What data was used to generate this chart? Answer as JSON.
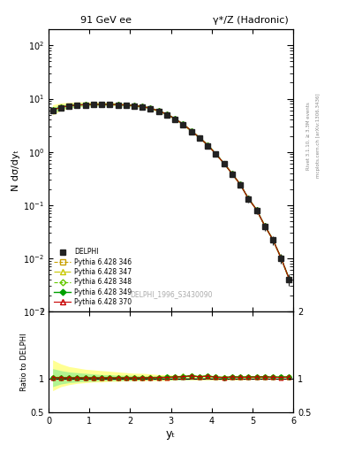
{
  "title_left": "91 GeV ee",
  "title_right": "γ*/Z (Hadronic)",
  "ylabel_main": "N dσ/dyₜ",
  "ylabel_ratio": "Ratio to DELPHI",
  "xlabel": "yₜ",
  "watermark": "DELPHI_1996_S3430090",
  "right_label_top": "Rivet 3.1.10, ≥ 3.3M events",
  "right_label_bot": "mcplots.cern.ch [arXiv:1306.3436]",
  "xlim": [
    0,
    6
  ],
  "ylim_main": [
    0.001,
    200
  ],
  "ylim_ratio": [
    0.5,
    2.5
  ],
  "x_data": [
    0.1,
    0.3,
    0.5,
    0.7,
    0.9,
    1.1,
    1.3,
    1.5,
    1.7,
    1.9,
    2.1,
    2.3,
    2.5,
    2.7,
    2.9,
    3.1,
    3.3,
    3.5,
    3.7,
    3.9,
    4.1,
    4.3,
    4.5,
    4.7,
    4.9,
    5.1,
    5.3,
    5.5,
    5.7,
    5.9
  ],
  "y_delphi": [
    6.0,
    6.8,
    7.2,
    7.5,
    7.6,
    7.7,
    7.7,
    7.7,
    7.6,
    7.5,
    7.3,
    7.0,
    6.5,
    5.8,
    5.0,
    4.1,
    3.2,
    2.4,
    1.8,
    1.3,
    0.9,
    0.6,
    0.38,
    0.24,
    0.13,
    0.08,
    0.04,
    0.022,
    0.01,
    0.004
  ],
  "yerr_delphi_lo": [
    0.3,
    0.2,
    0.15,
    0.12,
    0.11,
    0.1,
    0.1,
    0.1,
    0.1,
    0.1,
    0.12,
    0.12,
    0.14,
    0.14,
    0.15,
    0.15,
    0.14,
    0.13,
    0.12,
    0.1,
    0.08,
    0.06,
    0.04,
    0.03,
    0.02,
    0.012,
    0.007,
    0.004,
    0.002,
    0.001
  ],
  "yerr_delphi_hi": [
    0.3,
    0.2,
    0.15,
    0.12,
    0.11,
    0.1,
    0.1,
    0.1,
    0.1,
    0.1,
    0.12,
    0.12,
    0.14,
    0.14,
    0.15,
    0.15,
    0.14,
    0.13,
    0.12,
    0.1,
    0.08,
    0.06,
    0.04,
    0.03,
    0.02,
    0.012,
    0.007,
    0.004,
    0.002,
    0.001
  ],
  "y_mc": [
    6.1,
    6.9,
    7.3,
    7.6,
    7.7,
    7.8,
    7.8,
    7.8,
    7.7,
    7.6,
    7.4,
    7.1,
    6.6,
    5.9,
    5.1,
    4.2,
    3.3,
    2.5,
    1.85,
    1.35,
    0.92,
    0.61,
    0.39,
    0.245,
    0.133,
    0.082,
    0.041,
    0.0225,
    0.0102,
    0.0041
  ],
  "band_lo": [
    0.82,
    0.88,
    0.91,
    0.93,
    0.94,
    0.95,
    0.95,
    0.96,
    0.96,
    0.97,
    0.97,
    0.97,
    0.97,
    0.97,
    0.97,
    0.98,
    0.98,
    0.98,
    0.98,
    0.98,
    0.98,
    0.98,
    0.98,
    0.98,
    0.99,
    0.99,
    0.99,
    0.99,
    0.99,
    0.99
  ],
  "band_hi": [
    1.28,
    1.22,
    1.18,
    1.16,
    1.14,
    1.13,
    1.12,
    1.11,
    1.1,
    1.09,
    1.08,
    1.08,
    1.07,
    1.06,
    1.06,
    1.05,
    1.05,
    1.04,
    1.04,
    1.03,
    1.03,
    1.03,
    1.03,
    1.02,
    1.02,
    1.02,
    1.02,
    1.01,
    1.01,
    1.01
  ],
  "band_green_lo": [
    0.88,
    0.92,
    0.94,
    0.95,
    0.96,
    0.96,
    0.97,
    0.97,
    0.97,
    0.97,
    0.97,
    0.98,
    0.98,
    0.98,
    0.98,
    0.98,
    0.98,
    0.99,
    0.99,
    0.99,
    0.99,
    0.99,
    0.99,
    0.99,
    0.99,
    0.99,
    0.99,
    1.0,
    1.0,
    1.0
  ],
  "band_green_hi": [
    1.15,
    1.12,
    1.1,
    1.09,
    1.08,
    1.07,
    1.06,
    1.06,
    1.05,
    1.05,
    1.05,
    1.04,
    1.04,
    1.04,
    1.03,
    1.03,
    1.03,
    1.02,
    1.02,
    1.02,
    1.02,
    1.02,
    1.02,
    1.01,
    1.01,
    1.01,
    1.01,
    1.01,
    1.01,
    1.01
  ],
  "color_delphi": "#222222",
  "color_346": "#c8a000",
  "color_347": "#c8c800",
  "color_348": "#64c800",
  "color_349": "#00a000",
  "color_370": "#c80000",
  "color_yellow_band": "#ffff80",
  "color_green_band": "#90ee90",
  "bg_color": "#ffffff"
}
